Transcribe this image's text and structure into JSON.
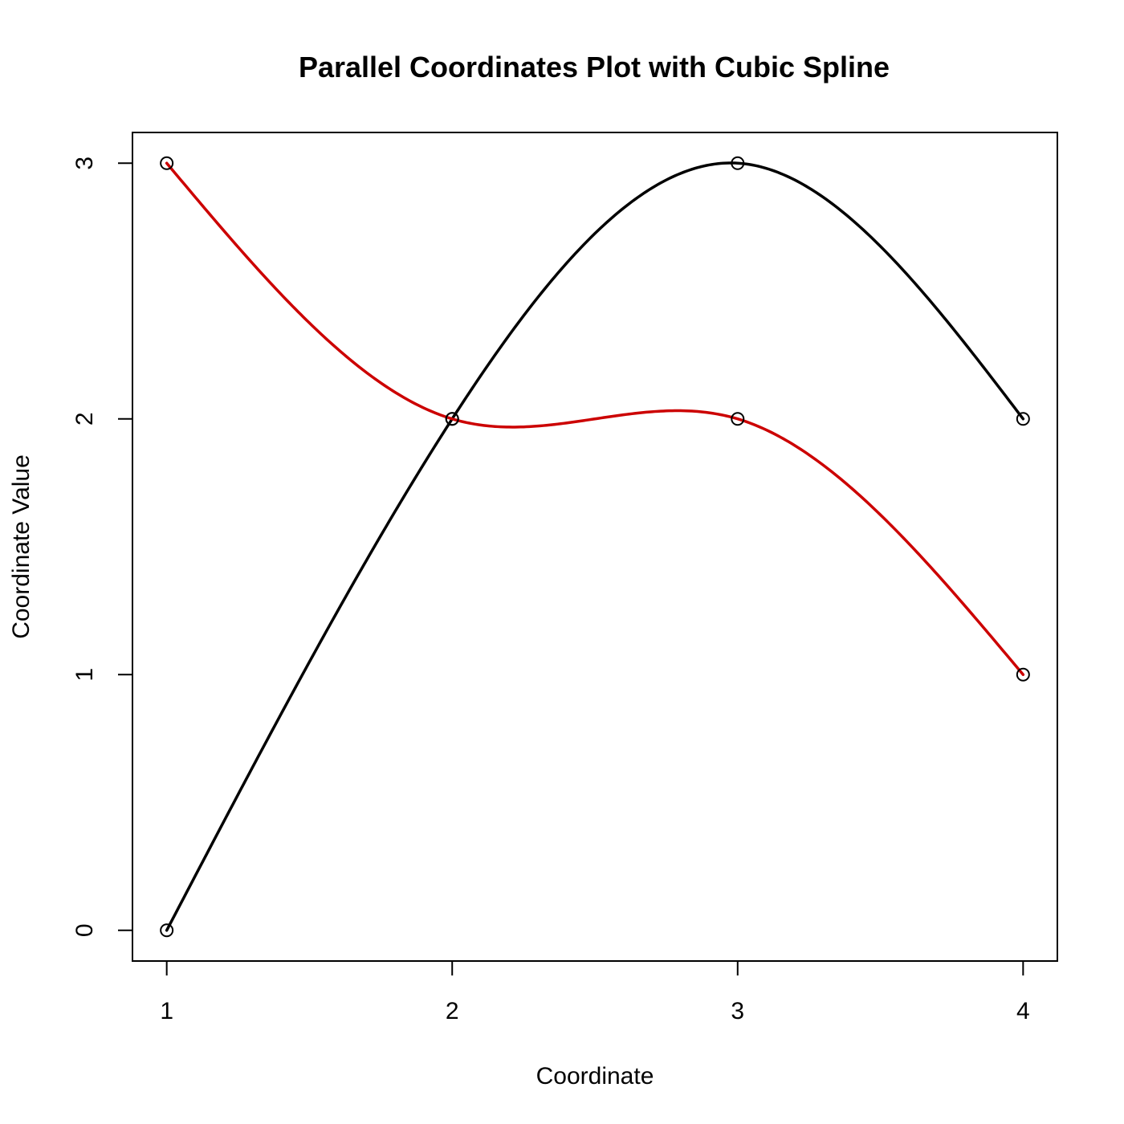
{
  "chart_data": {
    "type": "line",
    "title": "Parallel Coordinates Plot with Cubic Spline",
    "xlabel": "Coordinate",
    "ylabel": "Coordinate Value",
    "x": [
      1,
      2,
      3,
      4
    ],
    "xlim": [
      0.88,
      4.12
    ],
    "ylim": [
      -0.12,
      3.12
    ],
    "xticks": [
      "1",
      "2",
      "3",
      "4"
    ],
    "yticks": [
      "0",
      "1",
      "2",
      "3"
    ],
    "grid": false,
    "legend": "none",
    "series": [
      {
        "color": "#000000",
        "values": [
          0,
          2,
          3,
          2
        ]
      },
      {
        "color": "#cc0000",
        "values": [
          3,
          2,
          2,
          1
        ]
      }
    ]
  }
}
